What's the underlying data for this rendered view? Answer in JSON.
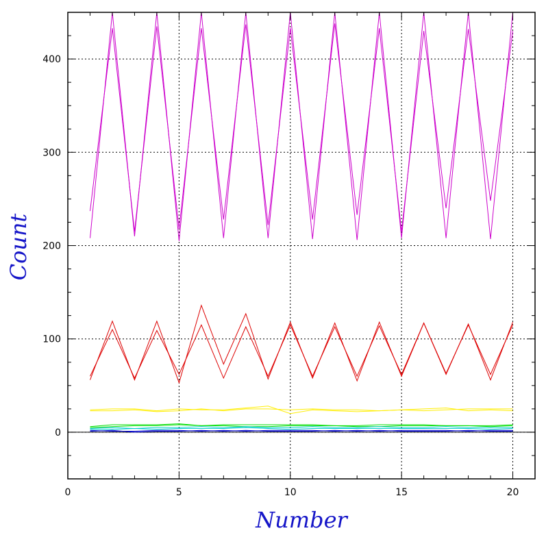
{
  "chart_data": {
    "type": "line",
    "title": "",
    "xlabel": "Number",
    "ylabel": "Count",
    "xlim": [
      0,
      21
    ],
    "ylim": [
      -50,
      450
    ],
    "xticks": [
      0,
      5,
      10,
      15,
      20
    ],
    "yticks": [
      0,
      100,
      200,
      300,
      400
    ],
    "grid": true,
    "grid_style": "dotted",
    "legend": "none",
    "label_color": "#1515c8",
    "x": [
      1,
      2,
      3,
      4,
      5,
      6,
      7,
      8,
      9,
      10,
      11,
      12,
      13,
      14,
      15,
      16,
      17,
      18,
      19,
      20
    ],
    "series": [
      {
        "color": "#cc00cc",
        "values": [
          208,
          450,
          210,
          450,
          205,
          450,
          208,
          450,
          208,
          450,
          207,
          450,
          206,
          450,
          208,
          450,
          208,
          450,
          207,
          450
        ]
      },
      {
        "color": "#cc00cc",
        "values": [
          237,
          433,
          215,
          435,
          218,
          433,
          228,
          437,
          222,
          433,
          228,
          438,
          233,
          433,
          215,
          430,
          240,
          432,
          248,
          430
        ]
      },
      {
        "color": "#dd0000",
        "values": [
          56,
          119,
          56,
          119,
          53,
          136,
          73,
          127,
          57,
          118,
          58,
          117,
          55,
          118,
          60,
          117,
          62,
          116,
          56,
          118
        ]
      },
      {
        "color": "#dd0000",
        "values": [
          60,
          110,
          58,
          109,
          62,
          115,
          58,
          113,
          60,
          115,
          60,
          113,
          60,
          114,
          62,
          117,
          63,
          115,
          62,
          115
        ]
      },
      {
        "color": "#ffee00",
        "values": [
          24,
          25,
          25,
          23,
          25,
          24,
          24,
          26,
          28,
          20,
          24,
          23,
          22,
          23,
          24,
          23,
          24,
          25,
          25,
          25
        ]
      },
      {
        "color": "#ffee00",
        "values": [
          23,
          23,
          24,
          22,
          23,
          25,
          23,
          25,
          25,
          24,
          25,
          24,
          24,
          23,
          24,
          25,
          26,
          23,
          24,
          23
        ]
      },
      {
        "color": "#00dd00",
        "values": [
          6,
          8,
          8,
          8,
          9,
          7,
          8,
          8,
          8,
          8,
          8,
          7,
          7,
          8,
          8,
          8,
          7,
          7,
          7,
          8
        ]
      },
      {
        "color": "#00dd00",
        "values": [
          5,
          6,
          7,
          7,
          8,
          7,
          7,
          6,
          6,
          7,
          7,
          7,
          6,
          6,
          7,
          7,
          7,
          7,
          6,
          7
        ]
      },
      {
        "color": "#00cccc",
        "values": [
          4,
          5,
          4,
          5,
          5,
          6,
          5,
          6,
          5,
          5,
          6,
          5,
          5,
          6,
          5,
          5,
          6,
          5,
          5,
          5
        ]
      },
      {
        "color": "#00cccc",
        "values": [
          3,
          3,
          4,
          3,
          4,
          4,
          4,
          5,
          4,
          3,
          4,
          4,
          4,
          4,
          4,
          4,
          4,
          4,
          3,
          4
        ]
      },
      {
        "color": "#0000cc",
        "values": [
          1,
          2,
          0,
          1,
          1,
          2,
          1,
          2,
          1,
          1,
          1,
          2,
          1,
          2,
          1,
          1,
          1,
          2,
          1,
          1
        ]
      },
      {
        "color": "#0000cc",
        "values": [
          2,
          1,
          1,
          2,
          2,
          1,
          2,
          1,
          2,
          2,
          2,
          1,
          2,
          1,
          2,
          2,
          2,
          1,
          2,
          2
        ]
      }
    ]
  }
}
